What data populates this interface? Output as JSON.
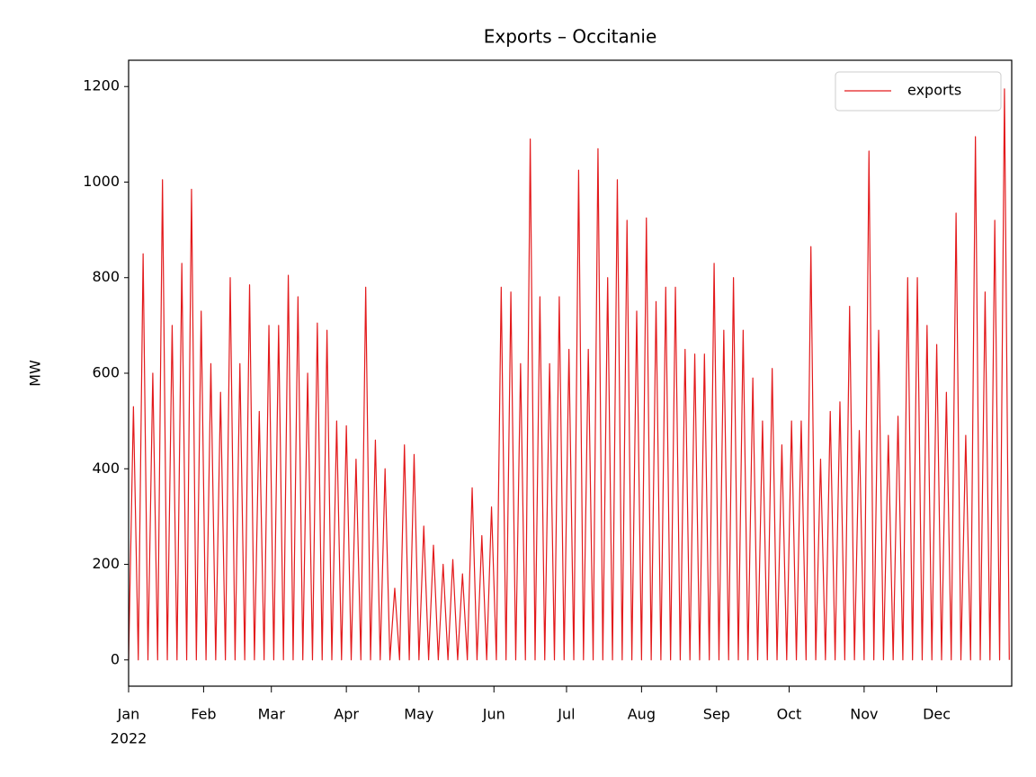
{
  "chart_data": {
    "type": "line",
    "title": "Exports – Occitanie",
    "ylabel": "MW",
    "year_label": "2022",
    "x": [
      0,
      2,
      4,
      6,
      8,
      10,
      12,
      14,
      16,
      18,
      20,
      22,
      24,
      26,
      28,
      30,
      32,
      34,
      36,
      38,
      40,
      42,
      44,
      46,
      48,
      50,
      52,
      54,
      56,
      58,
      60,
      62,
      64,
      66,
      68,
      70,
      72,
      74,
      76,
      78,
      80,
      82,
      84,
      86,
      88,
      90,
      92,
      94,
      96,
      98,
      100,
      102,
      104,
      106,
      108,
      110,
      112,
      114,
      116,
      118,
      120,
      122,
      124,
      126,
      128,
      130,
      132,
      134,
      136,
      138,
      140,
      142,
      144,
      146,
      148,
      150,
      152,
      154,
      156,
      158,
      160,
      162,
      164,
      166,
      168,
      170,
      172,
      174,
      176,
      178,
      180,
      182,
      184,
      186,
      188,
      190,
      192,
      194,
      196,
      198,
      200,
      202,
      204,
      206,
      208,
      210,
      212,
      214,
      216,
      218,
      220,
      222,
      224,
      226,
      228,
      230,
      232,
      234,
      236,
      238,
      240,
      242,
      244,
      246,
      248,
      250,
      252,
      254,
      256,
      258,
      260,
      262,
      264,
      266,
      268,
      270,
      272,
      274,
      276,
      278,
      280,
      282,
      284,
      286,
      288,
      290,
      292,
      294,
      296,
      298,
      300,
      302,
      304,
      306,
      308,
      310,
      312,
      314,
      316,
      318,
      320,
      322,
      324,
      326,
      328,
      330,
      332,
      334,
      336,
      338,
      340,
      342,
      344,
      346,
      348,
      350,
      352,
      354,
      356,
      358,
      360,
      362,
      364
    ],
    "series": [
      {
        "name": "exports",
        "color": "#e31a1c",
        "values": [
          0,
          530,
          0,
          850,
          0,
          600,
          0,
          1005,
          0,
          700,
          0,
          830,
          0,
          985,
          0,
          730,
          0,
          620,
          0,
          560,
          0,
          800,
          0,
          620,
          0,
          785,
          0,
          520,
          0,
          700,
          0,
          700,
          0,
          805,
          0,
          760,
          0,
          600,
          0,
          705,
          0,
          690,
          0,
          500,
          0,
          490,
          0,
          420,
          0,
          780,
          0,
          460,
          0,
          400,
          0,
          150,
          0,
          450,
          0,
          430,
          0,
          280,
          0,
          240,
          0,
          200,
          0,
          210,
          0,
          180,
          0,
          360,
          0,
          260,
          0,
          320,
          0,
          780,
          0,
          770,
          0,
          620,
          0,
          1090,
          0,
          760,
          0,
          620,
          0,
          760,
          0,
          650,
          0,
          1025,
          0,
          650,
          0,
          1070,
          0,
          800,
          0,
          1005,
          0,
          920,
          0,
          730,
          0,
          925,
          0,
          750,
          0,
          780,
          0,
          780,
          0,
          650,
          0,
          640,
          0,
          640,
          0,
          830,
          0,
          690,
          0,
          800,
          0,
          690,
          0,
          590,
          0,
          500,
          0,
          610,
          0,
          450,
          0,
          500,
          0,
          500,
          0,
          865,
          0,
          420,
          0,
          520,
          0,
          540,
          0,
          740,
          0,
          480,
          0,
          1065,
          0,
          690,
          0,
          470,
          0,
          510,
          0,
          800,
          0,
          800,
          0,
          700,
          0,
          660,
          0,
          560,
          0,
          935,
          0,
          470,
          0,
          1095,
          0,
          770,
          0,
          920,
          0,
          1195,
          0
        ]
      }
    ],
    "xlim": [
      0,
      365
    ],
    "xticks": [
      {
        "value": 0,
        "label": "Jan"
      },
      {
        "value": 31,
        "label": "Feb"
      },
      {
        "value": 59,
        "label": "Mar"
      },
      {
        "value": 90,
        "label": "Apr"
      },
      {
        "value": 120,
        "label": "May"
      },
      {
        "value": 151,
        "label": "Jun"
      },
      {
        "value": 181,
        "label": "Jul"
      },
      {
        "value": 212,
        "label": "Aug"
      },
      {
        "value": 243,
        "label": "Sep"
      },
      {
        "value": 273,
        "label": "Oct"
      },
      {
        "value": 304,
        "label": "Nov"
      },
      {
        "value": 334,
        "label": "Dec"
      }
    ],
    "ylim": [
      -55,
      1255
    ],
    "yticks": [
      0,
      200,
      400,
      600,
      800,
      1000,
      1200
    ],
    "legend": "upper right",
    "grid": false
  }
}
